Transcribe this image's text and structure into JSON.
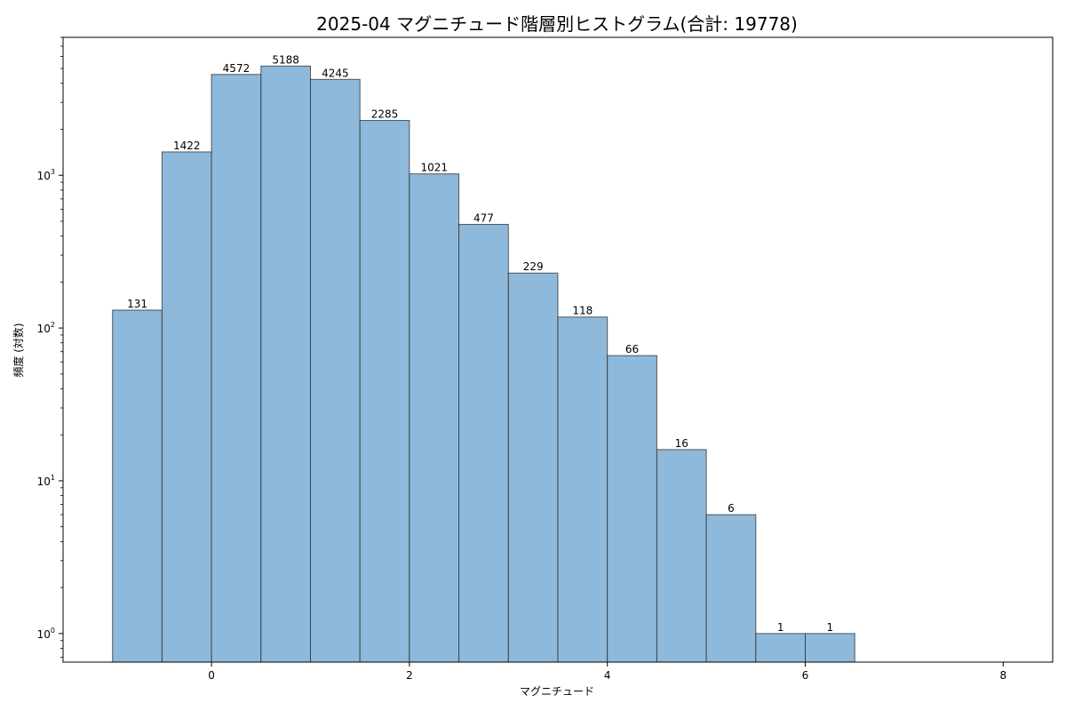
{
  "chart_data": {
    "type": "bar",
    "title": "2025-04 マグニチュード階層別ヒストグラム(合計: 19778)",
    "xlabel": "マグニチュード",
    "ylabel": "頻度 (対数)",
    "yscale": "log",
    "xlim": [
      -1.5,
      8.5
    ],
    "ylim": [
      0.65,
      8000
    ],
    "bin_width": 0.5,
    "bins": [
      {
        "x0": -1.0,
        "x1": -0.5,
        "count": 131
      },
      {
        "x0": -0.5,
        "x1": 0.0,
        "count": 1422
      },
      {
        "x0": 0.0,
        "x1": 0.5,
        "count": 4572
      },
      {
        "x0": 0.5,
        "x1": 1.0,
        "count": 5188
      },
      {
        "x0": 1.0,
        "x1": 1.5,
        "count": 4245
      },
      {
        "x0": 1.5,
        "x1": 2.0,
        "count": 2285
      },
      {
        "x0": 2.0,
        "x1": 2.5,
        "count": 1021
      },
      {
        "x0": 2.5,
        "x1": 3.0,
        "count": 477
      },
      {
        "x0": 3.0,
        "x1": 3.5,
        "count": 229
      },
      {
        "x0": 3.5,
        "x1": 4.0,
        "count": 118
      },
      {
        "x0": 4.0,
        "x1": 4.5,
        "count": 66
      },
      {
        "x0": 4.5,
        "x1": 5.0,
        "count": 16
      },
      {
        "x0": 5.0,
        "x1": 5.5,
        "count": 6
      },
      {
        "x0": 5.5,
        "x1": 6.0,
        "count": 1
      },
      {
        "x0": 6.0,
        "x1": 6.5,
        "count": 1
      }
    ],
    "x_ticks": [
      0,
      2,
      4,
      6,
      8
    ],
    "y_ticks": [
      {
        "value": 1,
        "base": "10",
        "exp": "0"
      },
      {
        "value": 10,
        "base": "10",
        "exp": "1"
      },
      {
        "value": 100,
        "base": "10",
        "exp": "2"
      },
      {
        "value": 1000,
        "base": "10",
        "exp": "3"
      }
    ],
    "grid": false,
    "bar_color": "#8fb9da",
    "edge_color": "#2b2b2b",
    "total": 19778
  }
}
